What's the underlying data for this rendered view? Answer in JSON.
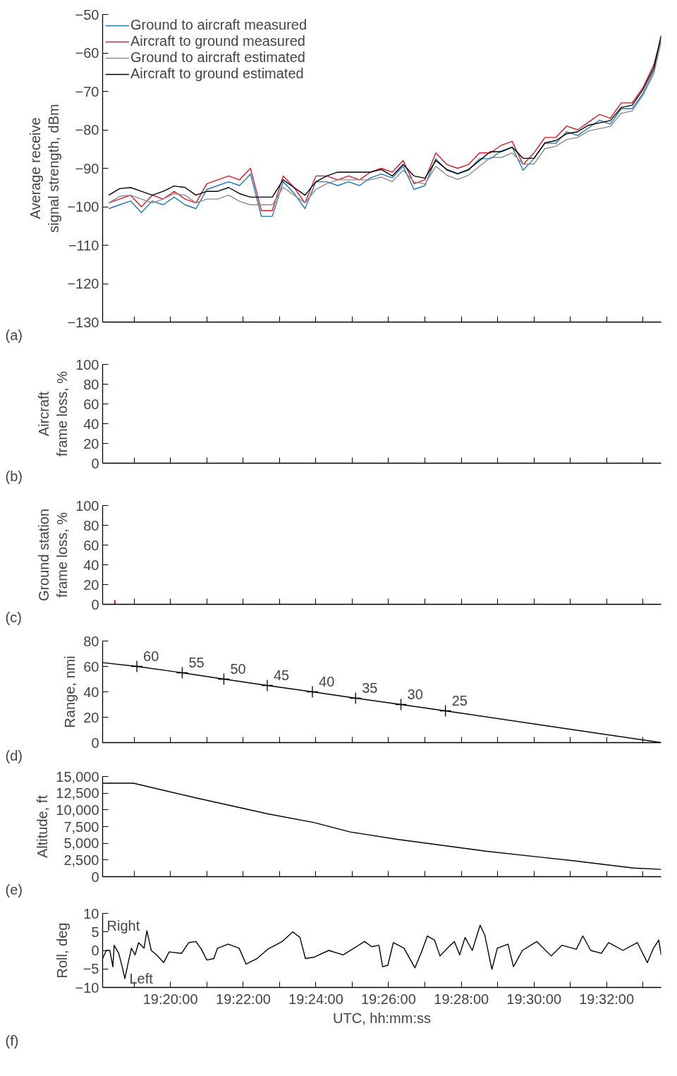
{
  "chart_data": [
    {
      "type": "line",
      "ylabel": "Average receive signal strength, dBm",
      "legend": "top left",
      "tick_labels": "y",
      "annotations": [
        "(a)"
      ],
      "xlim": [
        19.3022,
        19.5583
      ],
      "xticks": [
        {
          "value": 19.3167,
          "label": null
        },
        {
          "value": 19.3333,
          "label": null
        },
        {
          "value": 19.35,
          "label": null
        },
        {
          "value": 19.3667,
          "label": null
        },
        {
          "value": 19.3833,
          "label": null
        },
        {
          "value": 19.4,
          "label": null
        },
        {
          "value": 19.4167,
          "label": null
        },
        {
          "value": 19.4333,
          "label": null
        },
        {
          "value": 19.45,
          "label": null
        },
        {
          "value": 19.4667,
          "label": null
        },
        {
          "value": 19.4833,
          "label": null
        },
        {
          "value": 19.5,
          "label": null
        },
        {
          "value": 19.5167,
          "label": null
        },
        {
          "value": 19.5333,
          "label": null
        },
        {
          "value": 19.55,
          "label": null
        }
      ],
      "ylim": [
        -130,
        -50
      ],
      "yticks": [
        {
          "value": -130,
          "label": "−130"
        },
        {
          "value": -120,
          "label": "−120"
        },
        {
          "value": -110,
          "label": "−110"
        },
        {
          "value": -100,
          "label": "−100"
        },
        {
          "value": -90,
          "label": "−90"
        },
        {
          "value": -80,
          "label": "−80"
        },
        {
          "value": -70,
          "label": "−70"
        },
        {
          "value": -60,
          "label": "−60"
        },
        {
          "value": -50,
          "label": "−50"
        }
      ],
      "x": [
        19.305,
        19.31,
        19.315,
        19.32,
        19.325,
        19.33,
        19.335,
        19.34,
        19.345,
        19.35,
        19.355,
        19.36,
        19.365,
        19.37,
        19.375,
        19.38,
        19.385,
        19.39,
        19.395,
        19.4,
        19.405,
        19.41,
        19.415,
        19.42,
        19.425,
        19.43,
        19.435,
        19.44,
        19.445,
        19.45,
        19.455,
        19.46,
        19.465,
        19.47,
        19.475,
        19.48,
        19.485,
        19.49,
        19.495,
        19.5,
        19.505,
        19.51,
        19.515,
        19.52,
        19.525,
        19.53,
        19.535,
        19.54,
        19.545,
        19.55,
        19.555,
        19.5583
      ],
      "series": [
        {
          "name": "Ground to aircraft measured",
          "color": "#1f77b4",
          "values": [
            -100.5,
            -99.5,
            -98.5,
            -101.5,
            -98.5,
            -99.5,
            -97.5,
            -99.5,
            -100.5,
            -95.5,
            -94.5,
            -93.5,
            -94.5,
            -91.5,
            -102.5,
            -102.5,
            -93.5,
            -96.5,
            -100.5,
            -93.5,
            -93.5,
            -94.5,
            -93.5,
            -94.5,
            -92.5,
            -91.5,
            -92.5,
            -89.5,
            -95.5,
            -94.5,
            -87.5,
            -90.5,
            -91.5,
            -90.5,
            -87.5,
            -87.5,
            -85.5,
            -84.5,
            -90.5,
            -87.5,
            -83.5,
            -83.5,
            -80.5,
            -81.5,
            -79.5,
            -77.5,
            -78.5,
            -74.5,
            -74.5,
            -70.5,
            -64.5,
            -57
          ]
        },
        {
          "name": "Aircraft to ground measured",
          "color": "#d7182a",
          "values": [
            -99,
            -98,
            -97,
            -100,
            -97,
            -98,
            -96,
            -98,
            -99,
            -94,
            -93,
            -92,
            -93,
            -90,
            -101,
            -101,
            -92,
            -95,
            -99,
            -92,
            -92,
            -93,
            -92,
            -93,
            -91,
            -90,
            -91,
            -88,
            -94,
            -93,
            -86,
            -89,
            -90,
            -89,
            -86,
            -86,
            -84,
            -83,
            -89,
            -86,
            -82,
            -82,
            -79,
            -80,
            -78,
            -76,
            -77,
            -73,
            -73,
            -69,
            -63,
            -56
          ]
        },
        {
          "name": "Ground to aircraft estimated",
          "color": "#8c8c8c",
          "values": [
            -99,
            -97.3,
            -97,
            -98,
            -99,
            -98,
            -96.6,
            -97,
            -99,
            -98,
            -98,
            -97,
            -98.6,
            -99.5,
            -99.5,
            -99.5,
            -95,
            -97,
            -99,
            -95.5,
            -94,
            -93,
            -93,
            -93,
            -93,
            -92.3,
            -93.5,
            -90.5,
            -93.5,
            -94.1,
            -89.5,
            -91.8,
            -92.9,
            -91.8,
            -89.5,
            -87.2,
            -87.2,
            -86,
            -88.9,
            -88.9,
            -84.9,
            -84.3,
            -82.5,
            -82,
            -80.3,
            -79.7,
            -79.1,
            -75.7,
            -75.1,
            -71,
            -65.3,
            -57
          ]
        },
        {
          "name": "Aircraft to ground estimated",
          "color": "#000000",
          "values": [
            -97,
            -95.3,
            -95,
            -96,
            -97,
            -96,
            -94.6,
            -95,
            -97,
            -96,
            -96,
            -95,
            -96.6,
            -97.5,
            -97.5,
            -97.5,
            -93,
            -95,
            -97,
            -93.5,
            -92,
            -91,
            -91,
            -91,
            -91,
            -90.3,
            -92,
            -89,
            -92,
            -92.6,
            -88,
            -90.3,
            -91.4,
            -90.3,
            -88,
            -85.7,
            -85.7,
            -84.5,
            -87.4,
            -87.4,
            -83.4,
            -82.8,
            -81,
            -80.5,
            -78.8,
            -78.2,
            -77.6,
            -74.2,
            -73.6,
            -69.5,
            -63.8,
            -55.5
          ]
        }
      ]
    },
    {
      "type": "line",
      "ylabel": "Aircraft frame loss, %",
      "tick_labels": "y",
      "annotations": [
        "(b)"
      ],
      "xlim": [
        19.3022,
        19.5583
      ],
      "xticks": [
        {
          "value": 19.3167,
          "label": null
        },
        {
          "value": 19.3333,
          "label": null
        },
        {
          "value": 19.35,
          "label": null
        },
        {
          "value": 19.3667,
          "label": null
        },
        {
          "value": 19.3833,
          "label": null
        },
        {
          "value": 19.4,
          "label": null
        },
        {
          "value": 19.4167,
          "label": null
        },
        {
          "value": 19.4333,
          "label": null
        },
        {
          "value": 19.45,
          "label": null
        },
        {
          "value": 19.4667,
          "label": null
        },
        {
          "value": 19.4833,
          "label": null
        },
        {
          "value": 19.5,
          "label": null
        },
        {
          "value": 19.5167,
          "label": null
        },
        {
          "value": 19.5333,
          "label": null
        },
        {
          "value": 19.55,
          "label": null
        }
      ],
      "ylim": [
        0,
        100
      ],
      "yticks": [
        0,
        20,
        40,
        60,
        80,
        100
      ]
    },
    {
      "type": "bar",
      "ylabel": "Ground station frame loss, %",
      "tick_labels": "y",
      "annotations": [
        "(c)"
      ],
      "xlim": [
        19.3022,
        19.5583
      ],
      "xticks": [
        {
          "value": 19.3167,
          "label": null
        },
        {
          "value": 19.3333,
          "label": null
        },
        {
          "value": 19.35,
          "label": null
        },
        {
          "value": 19.3667,
          "label": null
        },
        {
          "value": 19.3833,
          "label": null
        },
        {
          "value": 19.4,
          "label": null
        },
        {
          "value": 19.4167,
          "label": null
        },
        {
          "value": 19.4333,
          "label": null
        },
        {
          "value": 19.45,
          "label": null
        },
        {
          "value": 19.4667,
          "label": null
        },
        {
          "value": 19.4833,
          "label": null
        },
        {
          "value": 19.5,
          "label": null
        },
        {
          "value": 19.5167,
          "label": null
        },
        {
          "value": 19.5333,
          "label": null
        },
        {
          "value": 19.55,
          "label": null
        }
      ],
      "ylim": [
        0,
        100
      ],
      "yticks": [
        0,
        20,
        40,
        60,
        80,
        100
      ],
      "series": [
        {
          "color": "#d7182a",
          "x": [
            19.3078
          ],
          "values": [
            4
          ]
        }
      ]
    },
    {
      "type": "line",
      "ylabel": "Range, nmi",
      "tick_labels": "y",
      "annotations": [
        "(d)"
      ],
      "xlim": [
        19.3022,
        19.5583
      ],
      "xticks": [
        {
          "value": 19.3167,
          "label": null
        },
        {
          "value": 19.3333,
          "label": null
        },
        {
          "value": 19.35,
          "label": null
        },
        {
          "value": 19.3667,
          "label": null
        },
        {
          "value": 19.3833,
          "label": null
        },
        {
          "value": 19.4,
          "label": null
        },
        {
          "value": 19.4167,
          "label": null
        },
        {
          "value": 19.4333,
          "label": null
        },
        {
          "value": 19.45,
          "label": null
        },
        {
          "value": 19.4667,
          "label": null
        },
        {
          "value": 19.4833,
          "label": null
        },
        {
          "value": 19.5,
          "label": null
        },
        {
          "value": 19.5167,
          "label": null
        },
        {
          "value": 19.5333,
          "label": null
        },
        {
          "value": 19.55,
          "label": null
        }
      ],
      "ylim": [
        0,
        80
      ],
      "yticks": [
        0,
        20,
        40,
        60,
        80
      ],
      "series": [
        {
          "color": "#000000",
          "x": [
            19.3022,
            19.3179,
            19.3387,
            19.3578,
            19.3777,
            19.3984,
            19.4182,
            19.439,
            19.4594,
            19.5583
          ],
          "values": [
            63,
            60,
            55,
            50,
            45,
            40,
            35,
            30,
            25,
            0
          ]
        },
        {
          "type": "scatter",
          "marker": "cross",
          "color": "#000000",
          "x": [
            19.3179,
            19.3387,
            19.3578,
            19.3777,
            19.3984,
            19.4182,
            19.439,
            19.4594
          ],
          "values": [
            60,
            55,
            50,
            45,
            40,
            35,
            30,
            25
          ],
          "value_labels": [
            "60",
            "55",
            "50",
            "45",
            "40",
            "35",
            "30",
            "25"
          ]
        }
      ]
    },
    {
      "type": "line",
      "ylabel": "Altitude, ft",
      "tick_labels": "y",
      "annotations": [
        "(e)"
      ],
      "xlim": [
        19.3022,
        19.5583
      ],
      "xticks": [
        {
          "value": 19.3167,
          "label": null
        },
        {
          "value": 19.3333,
          "label": null
        },
        {
          "value": 19.35,
          "label": null
        },
        {
          "value": 19.3667,
          "label": null
        },
        {
          "value": 19.3833,
          "label": null
        },
        {
          "value": 19.4,
          "label": null
        },
        {
          "value": 19.4167,
          "label": null
        },
        {
          "value": 19.4333,
          "label": null
        },
        {
          "value": 19.45,
          "label": null
        },
        {
          "value": 19.4667,
          "label": null
        },
        {
          "value": 19.4833,
          "label": null
        },
        {
          "value": 19.5,
          "label": null
        },
        {
          "value": 19.5167,
          "label": null
        },
        {
          "value": 19.5333,
          "label": null
        },
        {
          "value": 19.55,
          "label": null
        }
      ],
      "ylim": [
        0,
        15000
      ],
      "yticks": [
        0,
        {
          "value": 2500,
          "label": "2,500"
        },
        {
          "value": 5000,
          "label": "5,000"
        },
        {
          "value": 7500,
          "label": "7,500"
        },
        {
          "value": 10000,
          "label": "10,000"
        },
        {
          "value": 12500,
          "label": "12,500"
        },
        {
          "value": 15000,
          "label": "15,000"
        }
      ],
      "series": [
        {
          "color": "#000000",
          "x": [
            19.3022,
            19.3163,
            19.3449,
            19.378,
            19.3993,
            19.4157,
            19.4371,
            19.4783,
            19.5176,
            19.5456,
            19.5583
          ],
          "values": [
            14000,
            14000,
            11800,
            9400,
            8100,
            6700,
            5600,
            3800,
            2400,
            1300,
            1100
          ]
        }
      ]
    },
    {
      "type": "line",
      "ylabel": "Roll, deg",
      "xlabel": "UTC, hh:mm:ss",
      "annotations": [
        "(f)",
        "Right",
        "Left"
      ],
      "xlim": [
        19.3022,
        19.5583
      ],
      "xticks": [
        {
          "value": 19.3167,
          "label": null
        },
        {
          "value": 19.3333,
          "label": "19:20:00"
        },
        {
          "value": 19.35,
          "label": null
        },
        {
          "value": 19.3667,
          "label": "19:22:00"
        },
        {
          "value": 19.3833,
          "label": null
        },
        {
          "value": 19.4,
          "label": "19:24:00"
        },
        {
          "value": 19.4167,
          "label": null
        },
        {
          "value": 19.4333,
          "label": "19:26:00"
        },
        {
          "value": 19.45,
          "label": null
        },
        {
          "value": 19.4667,
          "label": "19:28:00"
        },
        {
          "value": 19.4833,
          "label": null
        },
        {
          "value": 19.5,
          "label": "19:30:00"
        },
        {
          "value": 19.5167,
          "label": null
        },
        {
          "value": 19.5333,
          "label": "19:32:00"
        },
        {
          "value": 19.55,
          "label": null
        }
      ],
      "ylim": [
        -10,
        10
      ],
      "yticks": [
        {
          "value": -10,
          "label": "−10"
        },
        {
          "value": -5,
          "label": "−5"
        },
        0,
        5,
        10
      ],
      "series": [
        {
          "color": "#000000",
          "x": [
            19.3022,
            19.3039,
            19.3055,
            19.3069,
            19.3075,
            19.3096,
            19.3113,
            19.3124,
            19.3138,
            19.3154,
            19.3171,
            19.3187,
            19.3212,
            19.3225,
            19.3245,
            19.3269,
            19.3302,
            19.3327,
            19.3384,
            19.3417,
            19.345,
            19.3475,
            19.35,
            19.3532,
            19.3549,
            19.3598,
            19.3648,
            19.368,
            19.373,
            19.3779,
            19.3845,
            19.3894,
            19.3927,
            19.3952,
            19.3993,
            19.4059,
            19.4125,
            19.4223,
            19.4256,
            19.4289,
            19.4306,
            19.433,
            19.4355,
            19.4404,
            19.4454,
            19.4487,
            19.4511,
            19.4544,
            19.4569,
            19.461,
            19.4635,
            19.4659,
            19.4684,
            19.4717,
            19.4753,
            19.4774,
            19.4807,
            19.4832,
            19.4881,
            19.4906,
            19.4947,
            19.5013,
            19.5079,
            19.5128,
            19.5194,
            19.5224,
            19.526,
            19.5309,
            19.5342,
            19.5408,
            19.5474,
            19.552,
            19.5548,
            19.5572,
            19.5583
          ],
          "values": [
            -2.2,
            0,
            0,
            -4.4,
            1.4,
            -0.8,
            -4.7,
            -7.6,
            -3.7,
            0.6,
            -1.2,
            2.1,
            0.6,
            5.3,
            0,
            -1.2,
            -3.3,
            -0.4,
            -0.8,
            2.1,
            2.4,
            0.3,
            -2.6,
            -2.2,
            0.6,
            1.7,
            0.6,
            -3.7,
            -2.2,
            0.3,
            2.4,
            5,
            3.5,
            -2.2,
            -1.8,
            0,
            -1.2,
            2.4,
            1,
            1.4,
            -4.4,
            -4,
            2.1,
            0.6,
            -4.7,
            0,
            3.9,
            2.8,
            -1.5,
            1,
            2.4,
            -1.2,
            3.5,
            0,
            6.8,
            4.2,
            -5.1,
            0.6,
            1.7,
            -4.4,
            0,
            2.4,
            -1.5,
            1.4,
            0.3,
            3.9,
            0,
            -0.8,
            2.1,
            0,
            2.1,
            -3.3,
            0.6,
            2.8,
            -1.2
          ]
        }
      ]
    }
  ]
}
